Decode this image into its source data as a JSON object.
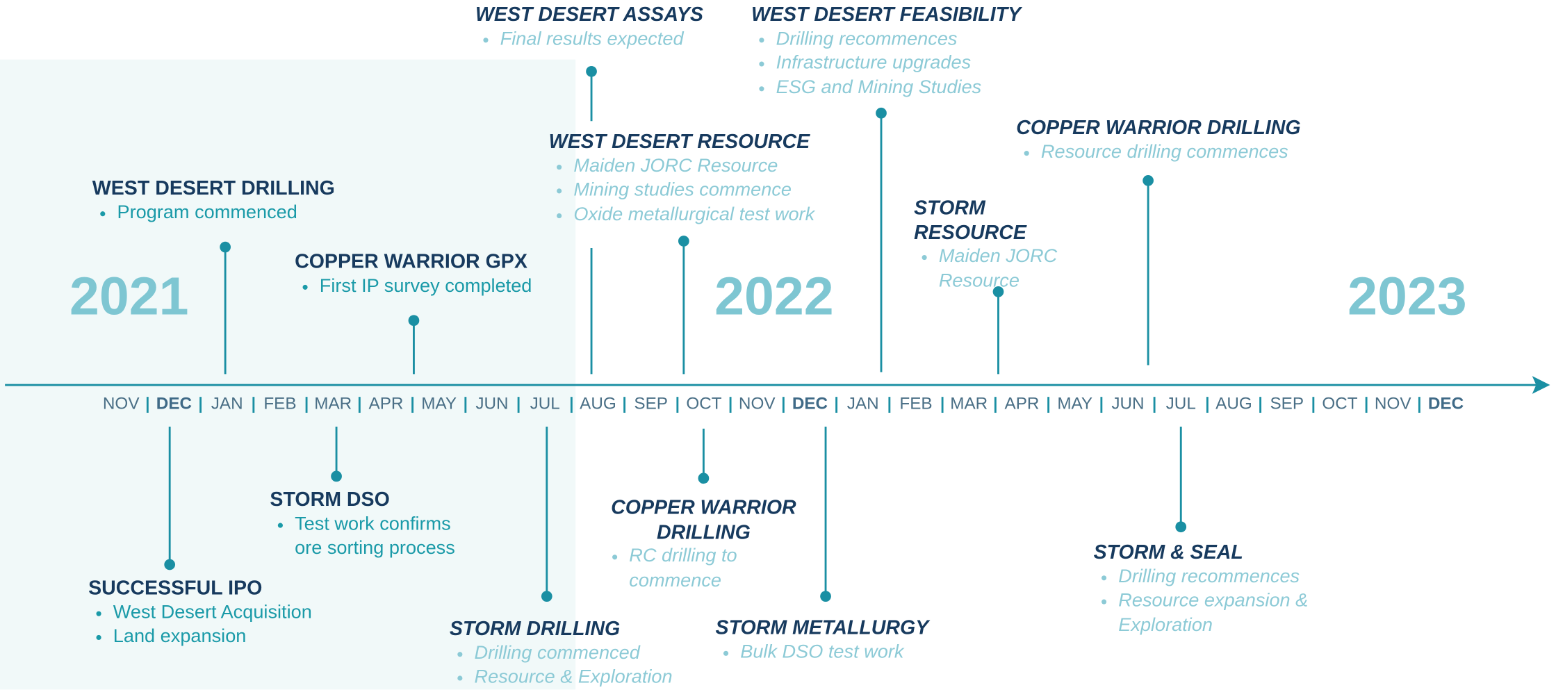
{
  "years": [
    "2021",
    "2022",
    "2023"
  ],
  "months": [
    {
      "label": "NOV"
    },
    {
      "label": "DEC",
      "bold": true
    },
    {
      "label": "JAN"
    },
    {
      "label": "FEB"
    },
    {
      "label": "MAR"
    },
    {
      "label": "APR"
    },
    {
      "label": "MAY"
    },
    {
      "label": "JUN"
    },
    {
      "label": "JUL"
    },
    {
      "label": "AUG"
    },
    {
      "label": "SEP"
    },
    {
      "label": "OCT"
    },
    {
      "label": "NOV"
    },
    {
      "label": "DEC",
      "bold": true
    },
    {
      "label": "JAN"
    },
    {
      "label": "FEB"
    },
    {
      "label": "MAR"
    },
    {
      "label": "APR"
    },
    {
      "label": "MAY"
    },
    {
      "label": "JUN"
    },
    {
      "label": "JUL"
    },
    {
      "label": "AUG"
    },
    {
      "label": "SEP"
    },
    {
      "label": "OCT"
    },
    {
      "label": "NOV"
    },
    {
      "label": "DEC",
      "bold": true
    }
  ],
  "events": [
    {
      "title": "WEST DESERT DRILLING",
      "bullets": [
        "Program commenced"
      ],
      "italic": false
    },
    {
      "title": "COPPER WARRIOR GPX",
      "bullets": [
        "First IP survey completed"
      ],
      "italic": false
    },
    {
      "title": "WEST DESERT ASSAYS",
      "bullets": [
        "Final results expected"
      ],
      "italic": true
    },
    {
      "title": "WEST DESERT RESOURCE",
      "bullets": [
        "Maiden JORC Resource",
        "Mining studies commence",
        "Oxide metallurgical test work"
      ],
      "italic": true
    },
    {
      "title": "WEST DESERT FEASIBILITY",
      "bullets": [
        "Drilling recommences",
        "Infrastructure upgrades",
        "ESG and Mining Studies"
      ],
      "italic": true
    },
    {
      "title": "STORM RESOURCE",
      "bullets": [
        "Maiden JORC Resource"
      ],
      "italic": true
    },
    {
      "title": "COPPER WARRIOR DRILLING",
      "bullets": [
        "Resource drilling commences"
      ],
      "italic": true
    },
    {
      "title": "SUCCESSFUL IPO",
      "bullets": [
        "West Desert Acquisition",
        "Land expansion"
      ],
      "italic": false
    },
    {
      "title": "STORM DSO",
      "bullets": [
        "Test work confirms ore sorting process"
      ],
      "italic": false
    },
    {
      "title": "STORM DRILLING",
      "bullets": [
        "Drilling commenced",
        "Resource & Exploration"
      ],
      "italic": true
    },
    {
      "title": "COPPER WARRIOR DRILLING",
      "bullets": [
        "RC drilling to commence"
      ],
      "italic": true
    },
    {
      "title": "STORM METALLURGY",
      "bullets": [
        "Bulk DSO test work"
      ],
      "italic": true
    },
    {
      "title": "STORM & SEAL",
      "bullets": [
        "Drilling recommences",
        "Resource expansion & Exploration"
      ],
      "italic": true
    }
  ]
}
